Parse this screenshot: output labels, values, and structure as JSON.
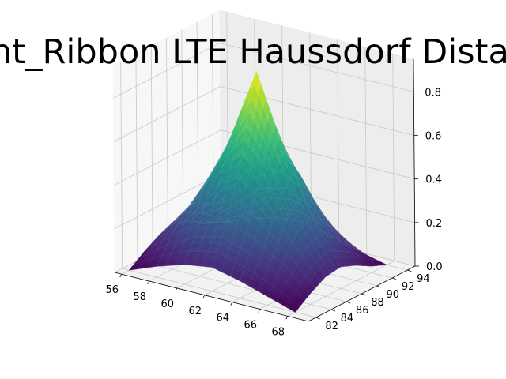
{
  "chart_data": {
    "type": "surface",
    "title": "Right_Ribbon LTE Haussdorf Distance",
    "xlabel": "",
    "ylabel": "",
    "zlabel": "",
    "grid": true,
    "colormap": "viridis",
    "x_ticks": [
      56,
      58,
      60,
      62,
      64,
      66,
      68
    ],
    "y_ticks": [
      82,
      84,
      86,
      88,
      90,
      92,
      94
    ],
    "z_ticks": [
      0.0,
      0.2,
      0.4,
      0.6,
      0.8
    ],
    "x_tick_labels": [
      "56",
      "58",
      "60",
      "62",
      "64",
      "66",
      "68"
    ],
    "y_tick_labels": [
      "82",
      "84",
      "86",
      "88",
      "90",
      "92",
      "94"
    ],
    "z_tick_labels": [
      "0.0",
      "0.2",
      "0.4",
      "0.6",
      "0.8"
    ],
    "xlim": [
      55.5,
      69.5
    ],
    "ylim": [
      81,
      95
    ],
    "zlim": [
      0,
      0.95
    ],
    "x": [
      56,
      58,
      60,
      62,
      64,
      66,
      68
    ],
    "y": [
      82,
      84,
      86,
      88,
      90,
      92,
      94
    ],
    "z": [
      [
        0.0,
        0.05,
        0.09,
        0.11,
        0.08,
        0.04,
        0.0
      ],
      [
        0.05,
        0.16,
        0.24,
        0.28,
        0.23,
        0.15,
        0.05
      ],
      [
        0.09,
        0.24,
        0.45,
        0.55,
        0.45,
        0.26,
        0.09
      ],
      [
        0.11,
        0.28,
        0.55,
        0.9,
        0.56,
        0.29,
        0.1
      ],
      [
        0.08,
        0.23,
        0.45,
        0.56,
        0.42,
        0.22,
        0.07
      ],
      [
        0.04,
        0.15,
        0.26,
        0.29,
        0.22,
        0.13,
        0.03
      ],
      [
        0.0,
        0.05,
        0.09,
        0.1,
        0.07,
        0.03,
        0.0
      ]
    ]
  }
}
